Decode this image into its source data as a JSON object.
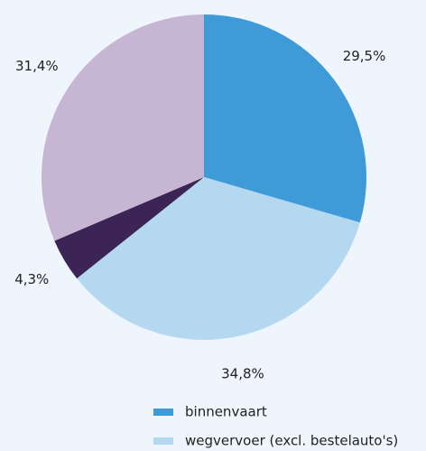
{
  "chart_data": {
    "type": "pie",
    "categories": [
      "binnenvaart",
      "wegvervoer (excl. bestelauto's)",
      null,
      null
    ],
    "values": [
      29.5,
      34.8,
      4.3,
      31.4
    ],
    "value_labels": [
      "29,5%",
      "34,8%",
      "4,3%",
      "31,4%"
    ],
    "colors": [
      "#3f9bd7",
      "#b4d8f0",
      "#3c2456",
      "#c6b6d3"
    ],
    "legend": "bottom"
  }
}
